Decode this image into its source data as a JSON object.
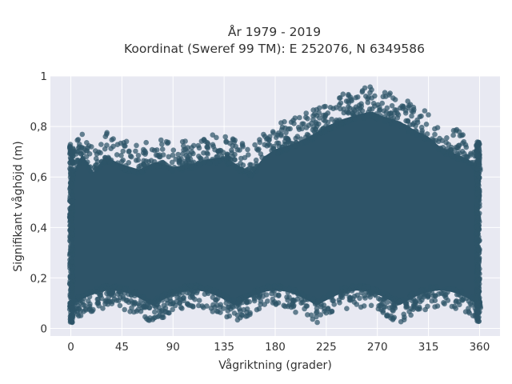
{
  "chart_data": {
    "type": "scatter",
    "title_lines": [
      "År 1979 - 2019",
      "Koordinat (Sweref 99 TM): E 252076, N 6349586"
    ],
    "xlabel": "Vågriktning (grader)",
    "ylabel": "Signifikant våghöjd (m)",
    "xlim": [
      -18,
      378
    ],
    "ylim": [
      -0.03,
      1.0
    ],
    "x_ticks": [
      0,
      45,
      90,
      135,
      180,
      225,
      270,
      315,
      360
    ],
    "x_tick_labels": [
      "0",
      "45",
      "90",
      "135",
      "180",
      "225",
      "270",
      "315",
      "360"
    ],
    "y_ticks": [
      0,
      0.2,
      0.4,
      0.6,
      0.8,
      1
    ],
    "y_tick_labels": [
      "0",
      "0,2",
      "0,4",
      "0,6",
      "0,8",
      "1"
    ],
    "grid": true,
    "legend": false,
    "colors": {
      "marker": "#2e5468",
      "plot_bg": "#e8e9f2",
      "grid": "#ffffff"
    },
    "series": [
      {
        "description_points_x_y": [
          [
            0,
            0.7
          ],
          [
            10,
            0.79
          ],
          [
            20,
            0.72
          ],
          [
            30,
            0.78
          ],
          [
            45,
            0.75
          ],
          [
            60,
            0.73
          ],
          [
            75,
            0.76
          ],
          [
            90,
            0.74
          ],
          [
            105,
            0.75
          ],
          [
            120,
            0.77
          ],
          [
            135,
            0.78
          ],
          [
            150,
            0.74
          ],
          [
            160,
            0.72
          ],
          [
            170,
            0.78
          ],
          [
            180,
            0.81
          ],
          [
            195,
            0.83
          ],
          [
            210,
            0.86
          ],
          [
            225,
            0.9
          ],
          [
            240,
            0.93
          ],
          [
            255,
            0.95
          ],
          [
            265,
            0.96
          ],
          [
            275,
            0.94
          ],
          [
            290,
            0.92
          ],
          [
            305,
            0.88
          ],
          [
            315,
            0.86
          ],
          [
            325,
            0.82
          ],
          [
            340,
            0.79
          ],
          [
            350,
            0.77
          ],
          [
            360,
            0.74
          ]
        ]
      }
    ]
  }
}
